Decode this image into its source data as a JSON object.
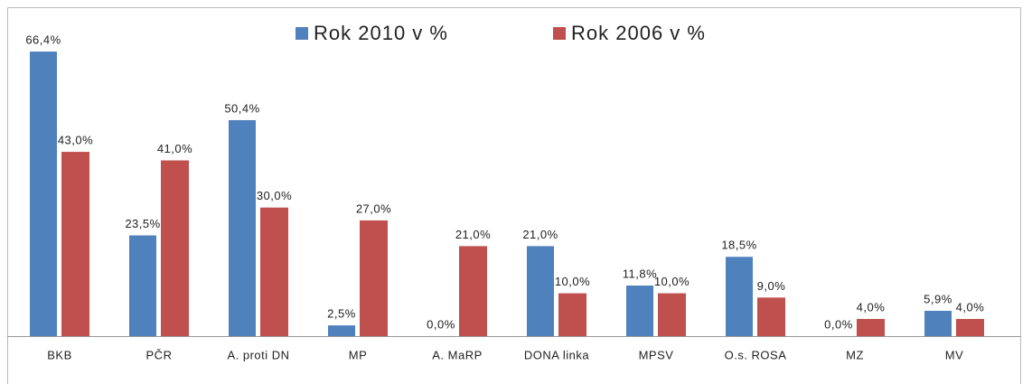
{
  "chart_data": {
    "type": "bar",
    "categories": [
      "BKB",
      "PČR",
      "A. proti DN",
      "MP",
      "A. MaRP",
      "DONA linka",
      "MPSV",
      "O.s. ROSA",
      "MZ",
      "MV"
    ],
    "series": [
      {
        "name": "Rok 2010 v %",
        "color": "#4f81bd",
        "values": [
          66.4,
          23.5,
          50.4,
          2.5,
          0.0,
          21.0,
          11.8,
          18.5,
          0.0,
          5.9
        ],
        "value_labels": [
          "66,4%",
          "23,5%",
          "50,4%",
          "2,5%",
          "0,0%",
          "21,0%",
          "11,8%",
          "18,5%",
          "0,0%",
          "5,9%"
        ]
      },
      {
        "name": "Rok 2006 v %",
        "color": "#c0504d",
        "values": [
          43.0,
          41.0,
          30.0,
          27.0,
          21.0,
          10.0,
          10.0,
          9.0,
          4.0,
          4.0
        ],
        "value_labels": [
          "43,0%",
          "41,0%",
          "30,0%",
          "27,0%",
          "21,0%",
          "10,0%",
          "10,0%",
          "9,0%",
          "4,0%",
          "4,0%"
        ]
      }
    ],
    "ylim": [
      0,
      70
    ],
    "legend": "top"
  }
}
